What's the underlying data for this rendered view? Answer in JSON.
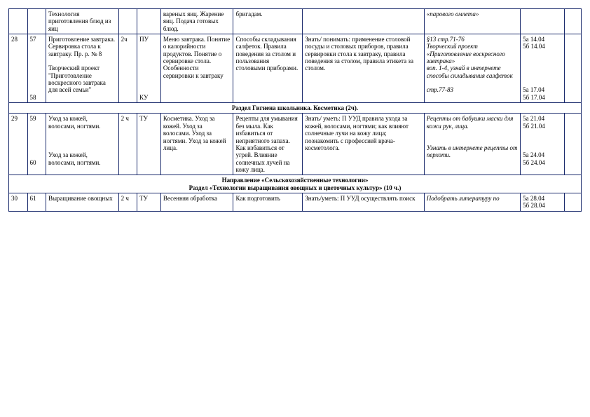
{
  "rows": {
    "r0": {
      "c3": "Технология приготовления блюд из яиц",
      "c6": "вареных яиц. Жарение яиц. Подача готовых блюд.",
      "c7": "бригадам.",
      "c9": "«парового омлета»"
    },
    "r1": {
      "c1": "28",
      "c2a": "57",
      "c2b": "58",
      "c3a": "Приготовление завтрака. Сервировка стола к завтраку. Пр. р. № 8",
      "c3b": "Творческий проект \"Приготовление воскресного завтрака для всей семьи\"",
      "c4": "2ч",
      "c5a": "ПУ",
      "c5b": "КУ",
      "c6": "Меню завтрака. Понятие о калорийности продуктов. Понятие о сервировке стола. Особенности сервировки к завтраку",
      "c7": "Способы складывания салфеток. Правила поведения за столом и пользования столовыми приборами.",
      "c8": "Знать/ понимать: применение столовой посуды и столовых приборов, правила сервировки стола к завтраку, правила поведения за столом, правила этикета за столом.",
      "c9a": "§13 стр.71-76",
      "c9b": "Творческий проект «Приготовление воскресного завтрака»",
      "c9c": "воп. 1-4,  узнай в интернете способы складывания салфеток",
      "c9d": "стр.77-83",
      "c10a": "5а 14.04",
      "c10b": "5б 14.04",
      "c10c": "5а 17.04",
      "c10d": "5б 17.04"
    },
    "section1": "Раздел Гигиена школьника. Косметика (2ч).",
    "r2": {
      "c1": "29",
      "c2a": "59",
      "c2b": "60",
      "c3a": "Уход за кожей, волосами, ногтями.",
      "c3b": "Уход за кожей, волосами, ногтями.",
      "c4": "2 ч",
      "c5": "ТУ",
      "c6": "Косметика. Уход за кожей. Уход за волосами. Уход за ногтями. Уход за кожей лица.",
      "c7": "Рецепты для умывания без мыла. Как избавиться от неприятного запаха. Как избавиться от угрей. Влияние солнечных лучей на кожу лица.",
      "c8": "Знать/ уметь: П УУД правила ухода за кожей, волосами, ногтями; как влияют солнечные лучи на кожу лица; познакомить с профессией врача-косметолога.",
      "c9a": "Рецепты от бабушки маски для кожи рук, лица.",
      "c9b": "Узнать в интернете рецепты  от перхоти.",
      "c10a": "5а 21.04",
      "c10b": "5б 21.04",
      "c10c": "5а 24.04",
      "c10d": "5б 24.04"
    },
    "section2a": "Направление «Сельскохозяйственные технологии»",
    "section2b": "Раздел «Технологии выращивания овощных и цветочных культур»  (10 ч.)",
    "r3": {
      "c1": "30",
      "c2": "61",
      "c3": "Выращивание овощных",
      "c4": "2 ч",
      "c5": "ТУ",
      "c6": "Весенняя обработка",
      "c7": "Как подготовить",
      "c8": "Знать/уметь: П УУД осуществлять поиск",
      "c9": "Подобрать литературу по",
      "c10a": "5а 28.04",
      "c10b": "5б 28.04"
    }
  }
}
